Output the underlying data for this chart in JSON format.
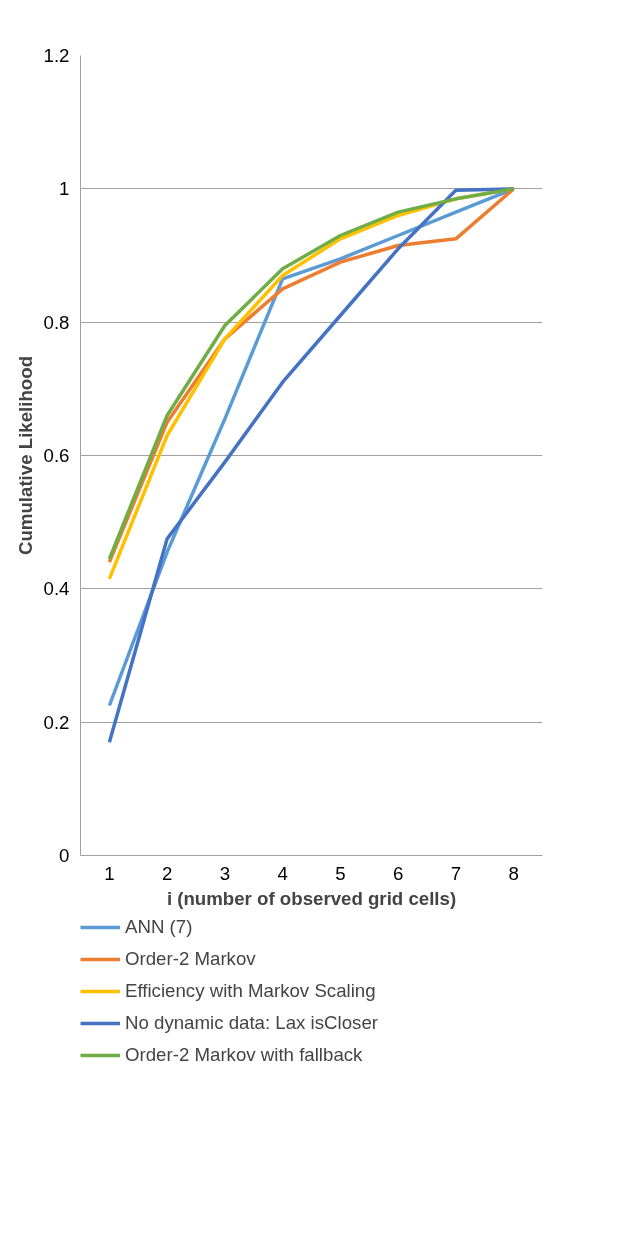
{
  "chart_data": {
    "type": "line",
    "xlabel": "i (number of observed grid cells)",
    "ylabel": "Cumulative Likelihood",
    "categories": [
      "1",
      "2",
      "3",
      "4",
      "5",
      "6",
      "7",
      "8"
    ],
    "ylim": [
      0,
      1.2
    ],
    "yticks": [
      0,
      0.2,
      0.4,
      0.6,
      0.8,
      1,
      1.2
    ],
    "grid": "y",
    "legend": "bottom",
    "marker": "none",
    "line_style": "solid",
    "series": [
      {
        "name": "ANN (7)",
        "color": "#5b9bd5",
        "values": [
          0.225,
          0.455,
          0.655,
          0.865,
          0.895,
          0.93,
          0.965,
          1
        ]
      },
      {
        "name": "Order-2 Markov",
        "color": "#ed7d31",
        "values": [
          0.44,
          0.65,
          0.775,
          0.85,
          0.89,
          0.915,
          0.925,
          1
        ]
      },
      {
        "name": "Efficiency with Markov Scaling",
        "color": "#ffc000",
        "values": [
          0.415,
          0.63,
          0.775,
          0.87,
          0.925,
          0.96,
          0.985,
          1
        ]
      },
      {
        "name": "No dynamic data: Lax isCloser",
        "color": "#4472c4",
        "values": [
          0.17,
          0.475,
          0.59,
          0.71,
          0.81,
          0.91,
          0.998,
          1
        ]
      },
      {
        "name": "Order-2 Markov with fallback",
        "color": "#70ad47",
        "values": [
          0.445,
          0.66,
          0.795,
          0.88,
          0.93,
          0.965,
          0.985,
          1
        ]
      }
    ]
  }
}
